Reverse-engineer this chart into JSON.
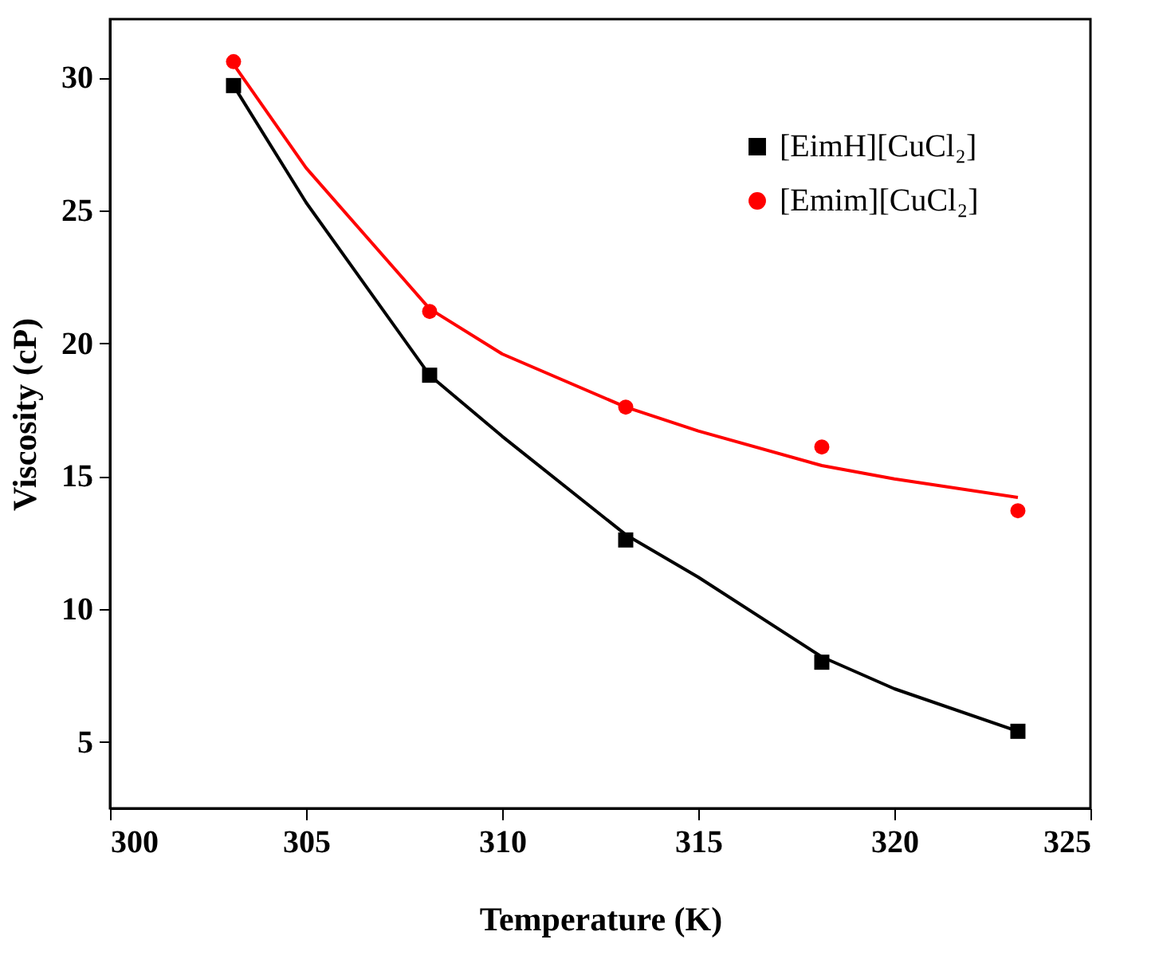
{
  "chart_data": {
    "type": "scatter",
    "xlabel": "Temperature (K)",
    "ylabel": "Viscosity (cP)",
    "x": [
      303.15,
      308.15,
      313.15,
      318.15,
      323.15
    ],
    "series": [
      {
        "name": "[EimH][CuCl₂]",
        "color": "#000000",
        "marker": "square",
        "values": [
          29.7,
          18.8,
          12.6,
          8.0,
          5.4
        ]
      },
      {
        "name": "[Emim][CuCl₂]",
        "color": "#ff0000",
        "marker": "circle",
        "values": [
          30.6,
          21.2,
          17.6,
          16.1,
          13.7
        ]
      },
      {
        "type": "line",
        "color": "#000000",
        "x": [
          303.15,
          305,
          308.15,
          310,
          313.15,
          315,
          318.15,
          320,
          323.15
        ],
        "values": [
          29.7,
          25.3,
          18.8,
          16.5,
          12.8,
          11.2,
          8.2,
          7.0,
          5.4
        ]
      },
      {
        "type": "line",
        "color": "#ff0000",
        "x": [
          303.15,
          305,
          308.15,
          310,
          313.15,
          315,
          318.15,
          320,
          323.15
        ],
        "values": [
          30.5,
          26.6,
          21.3,
          19.6,
          17.6,
          16.7,
          15.4,
          14.9,
          14.2
        ]
      }
    ],
    "xlim": [
      300,
      325
    ],
    "xticks": [
      300,
      305,
      310,
      315,
      320,
      325
    ],
    "ylim": [
      2.5,
      32.2
    ],
    "yticks": [
      5,
      10,
      15,
      20,
      25,
      30
    ],
    "grid": false,
    "legend": "top right"
  }
}
